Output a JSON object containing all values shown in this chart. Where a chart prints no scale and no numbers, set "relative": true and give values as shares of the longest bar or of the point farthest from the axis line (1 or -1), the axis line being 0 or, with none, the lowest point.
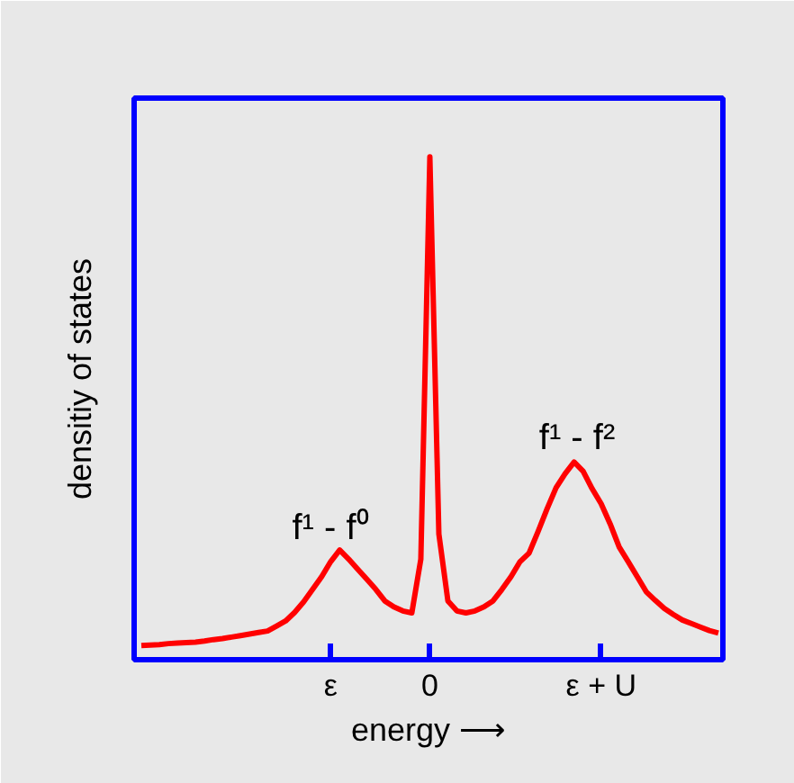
{
  "chart_data": {
    "type": "line",
    "relative": true,
    "xlabel": "energy ⟶",
    "ylabel": "densitiy of states",
    "categories": [
      null,
      null,
      null,
      null,
      null,
      null,
      null,
      null,
      null,
      null,
      null,
      null,
      null,
      null,
      null,
      null,
      null,
      null,
      null,
      null,
      null,
      "ε",
      null,
      null,
      null,
      null,
      null,
      null,
      null,
      null,
      null,
      null,
      "0",
      null,
      null,
      null,
      null,
      null,
      null,
      null,
      null,
      null,
      null,
      null,
      null,
      null,
      null,
      null,
      null,
      null,
      null,
      "ε + U",
      null,
      null,
      null,
      null,
      null,
      null,
      null,
      null,
      null,
      null,
      null,
      null,
      null
    ],
    "series": [
      {
        "color": "#ff0000",
        "values": [
          0.028,
          0.029,
          0.03,
          0.032,
          0.033,
          0.034,
          0.035,
          0.037,
          0.04,
          0.042,
          0.045,
          0.048,
          0.051,
          0.054,
          0.057,
          0.067,
          0.077,
          0.094,
          0.115,
          0.14,
          0.165,
          0.195,
          0.218,
          0.2,
          0.18,
          0.16,
          0.14,
          0.117,
          0.105,
          0.097,
          0.093,
          0.2,
          1.0,
          0.25,
          0.117,
          0.097,
          0.093,
          0.097,
          0.105,
          0.117,
          0.14,
          0.165,
          0.195,
          0.212,
          0.255,
          0.3,
          0.342,
          0.37,
          0.393,
          0.375,
          0.34,
          0.31,
          0.27,
          0.224,
          0.195,
          0.165,
          0.135,
          0.118,
          0.102,
          0.09,
          0.079,
          0.072,
          0.065,
          0.058,
          0.053
        ]
      }
    ],
    "annotations": [
      "f¹ - f⁰",
      "f¹ - f²"
    ],
    "marker": "none",
    "line_style": "solid",
    "grid": false
  }
}
